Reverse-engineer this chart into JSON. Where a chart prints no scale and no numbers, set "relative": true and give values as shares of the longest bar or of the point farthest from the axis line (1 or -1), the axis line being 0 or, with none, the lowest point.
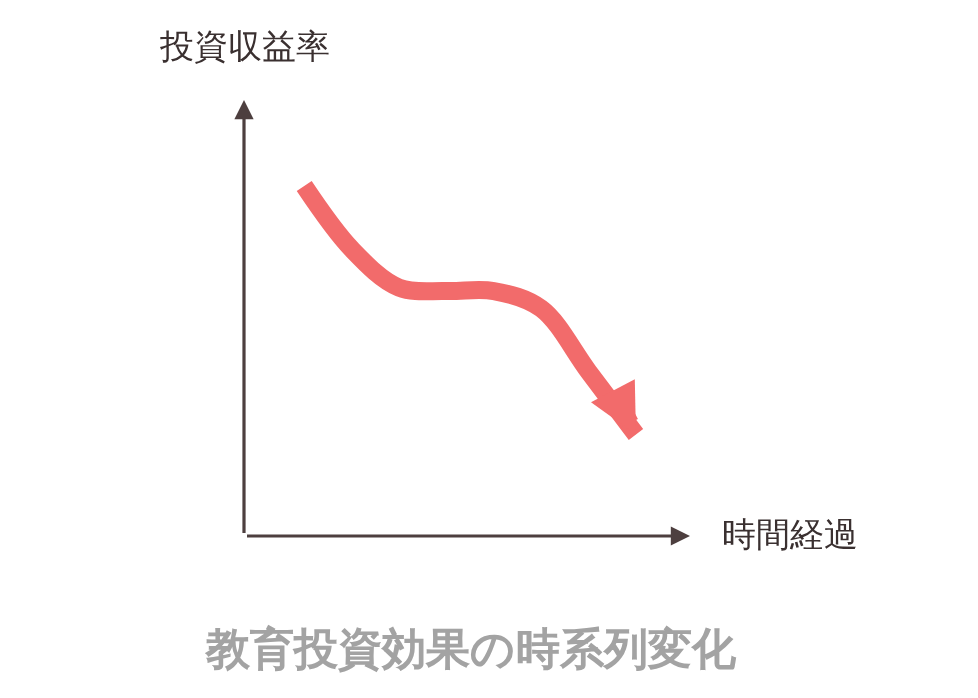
{
  "chart_data": {
    "type": "line",
    "title": "教育投資効果の時系列変化",
    "xlabel": "時間経過",
    "ylabel": "投資収益率",
    "relative": true,
    "categories": [
      null,
      null,
      null,
      null,
      null,
      null,
      null,
      null
    ],
    "series": [
      {
        "color": "#f26b6b",
        "values": [
          1,
          0.82,
          0.71,
          0.7,
          0.7,
          0.65,
          0.47,
          0.29
        ]
      }
    ],
    "line_style": "solid"
  }
}
